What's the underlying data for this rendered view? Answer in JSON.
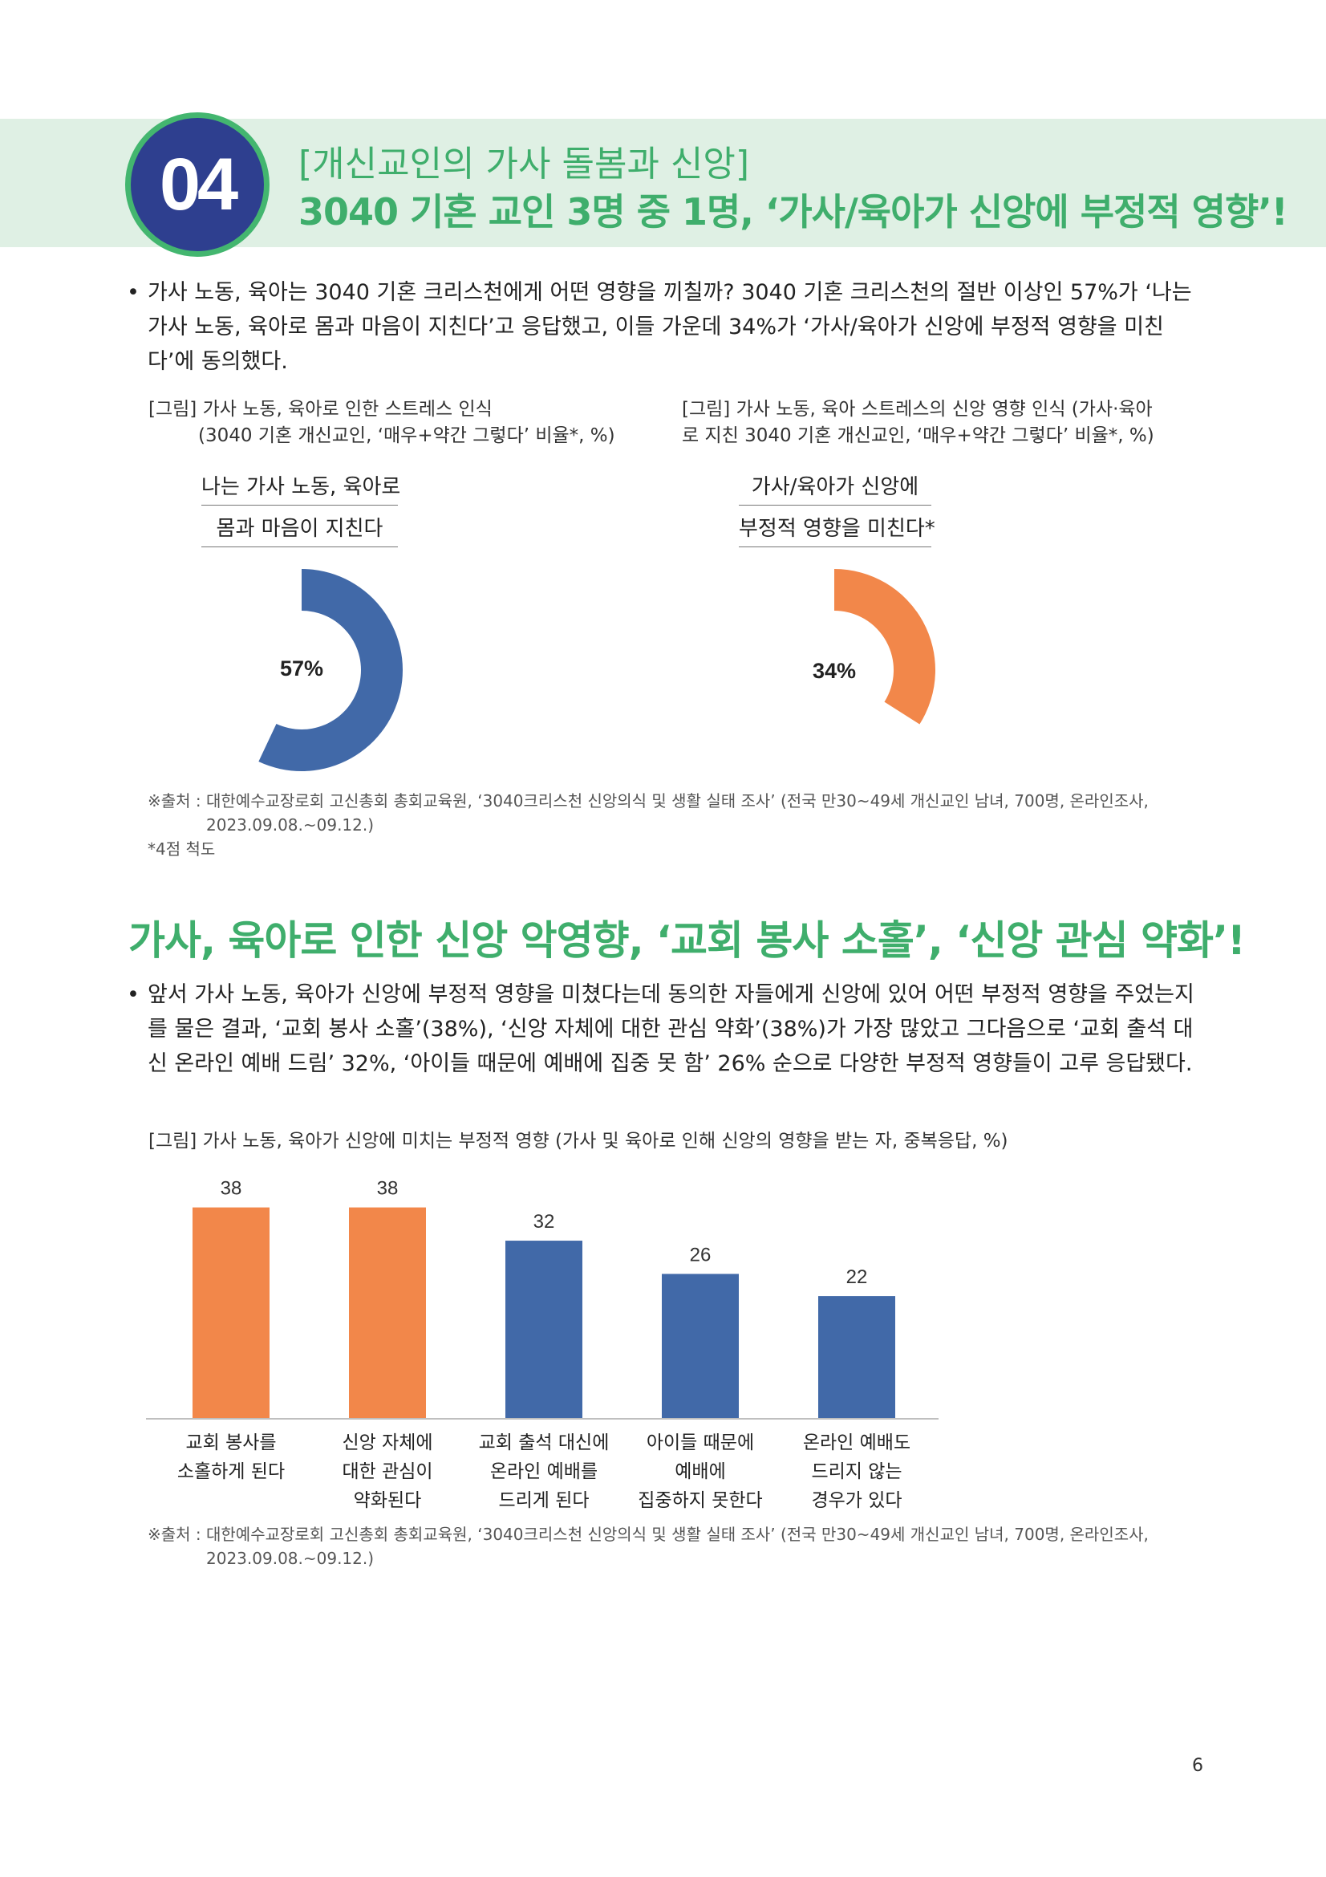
{
  "header": {
    "badge": "04",
    "subtitle": "[개신교인의 가사 돌봄과 신앙]",
    "title": "3040 기혼 교인 3명 중 1명, ‘가사/육아가 신앙에 부정적 영향’!"
  },
  "intro": {
    "bullet": "•",
    "text": "가사 노동, 육아는 3040 기혼 크리스천에게 어떤 영향을 끼칠까? 3040 기혼 크리스천의 절반 이상인 57%가 ‘나는 가사 노동, 육아로 몸과 마음이 지친다’고 응답했고, 이들 가운데 34%가 ‘가사/육아가 신앙에 부정적 영향을 미친다’에 동의했다."
  },
  "fig1": {
    "caption_line1": "[그림] 가사 노동, 육아로 인한 스트레스 인식",
    "caption_line2": "(3040 기혼 개신교인, ‘매우+약간 그렇다’ 비율*, %)",
    "label_line1": "나는 가사 노동, 육아로",
    "label_line2": "몸과 마음이 지친다",
    "value": 57,
    "value_label": "57%",
    "color": "#4169a8"
  },
  "fig2": {
    "caption_line1": "[그림] 가사 노동, 육아 스트레스의 신앙 영향 인식 (가사·육아",
    "caption_line2": "로 지친 3040 기혼 개신교인, ‘매우+약간 그렇다’ 비율*, %)",
    "label_line1": "가사/육아가 신앙에",
    "label_line2": "부정적 영향을 미친다*",
    "value": 34,
    "value_label": "34%",
    "color": "#f2874a"
  },
  "source1": {
    "line1": "※출처 : 대한예수교장로회 고신총회 총회교육원, ‘3040크리스천 신앙의식 및 생활 실태 조사’ (전국 만30~49세 개신교인 남녀, 700명, 온라인조사,",
    "line2": "2023.09.08.~09.12.)",
    "note": "*4점 척도"
  },
  "section2": {
    "title": "가사, 육아로 인한 신앙 악영향, ‘교회 봉사 소홀’, ‘신앙 관심 약화’!",
    "bullet": "•",
    "text": "앞서 가사 노동, 육아가 신앙에 부정적 영향을 미쳤다는데 동의한 자들에게 신앙에 있어 어떤 부정적 영향을 주었는지를 물은 결과, ‘교회 봉사 소홀’(38%), ‘신앙 자체에 대한 관심 약화’(38%)가 가장 많았고 그다음으로 ‘교회 출석 대신 온라인 예배 드림’ 32%, ‘아이들 때문에 예배에 집중 못 함’ 26% 순으로 다양한 부정적 영향들이 고루 응답됐다.",
    "caption": "[그림] 가사 노동, 육아가 신앙에 미치는 부정적 영향 (가사 및 육아로 인해 신앙의 영향을 받는 자, 중복응답, %)"
  },
  "chart_data": {
    "type": "bar",
    "categories": [
      [
        "교회 봉사를",
        "소홀하게 된다"
      ],
      [
        "신앙 자체에",
        "대한 관심이",
        "약화된다"
      ],
      [
        "교회 출석 대신에",
        "온라인 예배를",
        "드리게 된다"
      ],
      [
        "아이들 때문에",
        "예배에",
        "집중하지 못한다"
      ],
      [
        "온라인 예배도",
        "드리지 않는",
        "경우가 있다"
      ]
    ],
    "values": [
      38,
      38,
      32,
      26,
      22
    ],
    "colors": [
      "#f2874a",
      "#f2874a",
      "#4169a8",
      "#4169a8",
      "#4169a8"
    ],
    "ylim": [
      0,
      42
    ]
  },
  "source2": {
    "line1": "※출처 : 대한예수교장로회 고신총회 총회교육원, ‘3040크리스천 신앙의식 및 생활 실태 조사’ (전국 만30~49세 개신교인 남녀, 700명, 온라인조사,",
    "line2": "2023.09.08.~09.12.)"
  },
  "page_number": "6"
}
